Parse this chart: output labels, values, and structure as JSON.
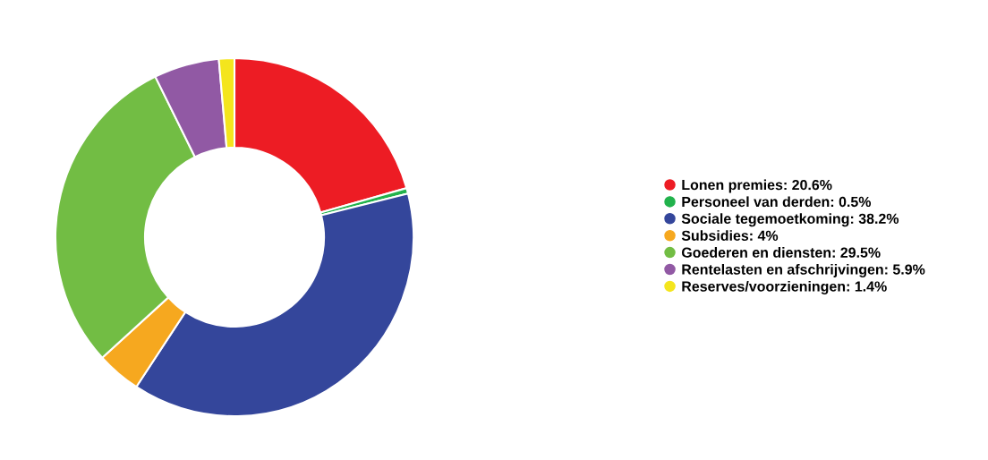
{
  "chart_data": {
    "type": "donut",
    "categories": [
      "Lonen premies: 20.6%",
      "Personeel van derden: 0.5%",
      "Sociale tegemoetkoming: 38.2%",
      "Subsidies: 4%",
      "Goederen en diensten: 29.5%",
      "Rentelasten en afschrijvingen: 5.9%",
      "Reserves/voorzieningen: 1.4%"
    ],
    "values": [
      20.6,
      0.5,
      38.2,
      4,
      29.5,
      5.9,
      1.4
    ],
    "colors": [
      "#ed1c24",
      "#22b24c",
      "#34469b",
      "#f6a81f",
      "#72bd44",
      "#9159a4",
      "#f4e51d"
    ],
    "legend": "right"
  }
}
